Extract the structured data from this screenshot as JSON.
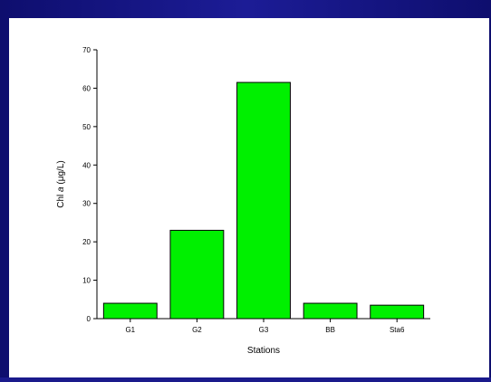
{
  "chart_data": {
    "type": "bar",
    "categories": [
      "G1",
      "G2",
      "G3",
      "BB",
      "Sta6"
    ],
    "values": [
      4,
      23,
      61.5,
      4,
      3.5
    ],
    "xlabel": "Stations",
    "ylabel": "Chl a (μg/L)",
    "ylabel_parts": {
      "prefix": "Chl ",
      "italic": "a",
      "suffix": " (μg/L)"
    },
    "ylim": [
      0,
      70
    ],
    "yticks": [
      0,
      10,
      20,
      30,
      40,
      50,
      60,
      70
    ],
    "grid": false,
    "bar_color": "#00f000",
    "bar_edge_color": "#000000"
  },
  "colors": {
    "background": "#1a1a8c",
    "panel": "#ffffff"
  }
}
